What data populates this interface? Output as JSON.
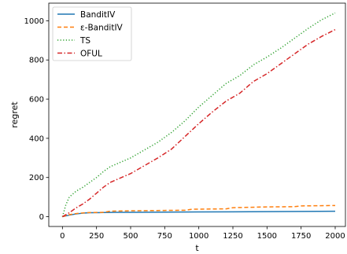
{
  "chart_data": {
    "type": "line",
    "xlabel": "t",
    "ylabel": "regret",
    "xlim": [
      -100,
      2075
    ],
    "ylim": [
      -50,
      1090
    ],
    "xticks": [
      0,
      250,
      500,
      750,
      1000,
      1250,
      1500,
      1750,
      2000
    ],
    "yticks": [
      0,
      200,
      400,
      600,
      800,
      1000
    ],
    "grid": false,
    "legend_position": "top-left",
    "series": [
      {
        "name": "BanditIV",
        "color": "#1f77b4",
        "linestyle": "solid",
        "x": [
          0,
          50,
          100,
          150,
          200,
          300,
          400,
          500,
          750,
          1000,
          1250,
          1500,
          1750,
          2000
        ],
        "y": [
          0,
          8,
          14,
          18,
          20,
          21,
          22,
          22,
          23,
          24,
          25,
          26,
          27,
          28
        ]
      },
      {
        "name": "ε-BanditIV",
        "color": "#ff7f0e",
        "linestyle": "dashed",
        "x": [
          0,
          50,
          100,
          150,
          200,
          300,
          350,
          500,
          750,
          900,
          950,
          1200,
          1250,
          1500,
          1700,
          1750,
          2000
        ],
        "y": [
          0,
          10,
          16,
          19,
          21,
          22,
          28,
          30,
          32,
          33,
          38,
          40,
          46,
          50,
          51,
          55,
          57
        ]
      },
      {
        "name": "TS",
        "color": "#2ca02c",
        "linestyle": "dotted",
        "x": [
          0,
          25,
          50,
          100,
          150,
          200,
          250,
          300,
          350,
          400,
          450,
          500,
          600,
          700,
          800,
          900,
          1000,
          1100,
          1200,
          1300,
          1400,
          1500,
          1600,
          1700,
          1800,
          1900,
          2000
        ],
        "y": [
          0,
          60,
          100,
          130,
          150,
          175,
          200,
          230,
          255,
          270,
          285,
          300,
          340,
          380,
          430,
          490,
          560,
          620,
          680,
          720,
          775,
          815,
          860,
          910,
          960,
          1005,
          1040
        ]
      },
      {
        "name": "OFUL",
        "color": "#d62728",
        "linestyle": "dashdot",
        "x": [
          0,
          50,
          100,
          150,
          200,
          250,
          300,
          350,
          400,
          500,
          600,
          700,
          800,
          900,
          1000,
          1100,
          1200,
          1300,
          1400,
          1500,
          1600,
          1700,
          1800,
          1900,
          2000
        ],
        "y": [
          0,
          20,
          45,
          65,
          90,
          120,
          150,
          175,
          190,
          220,
          260,
          300,
          345,
          410,
          475,
          535,
          590,
          630,
          690,
          730,
          780,
          830,
          880,
          920,
          955
        ]
      }
    ]
  }
}
